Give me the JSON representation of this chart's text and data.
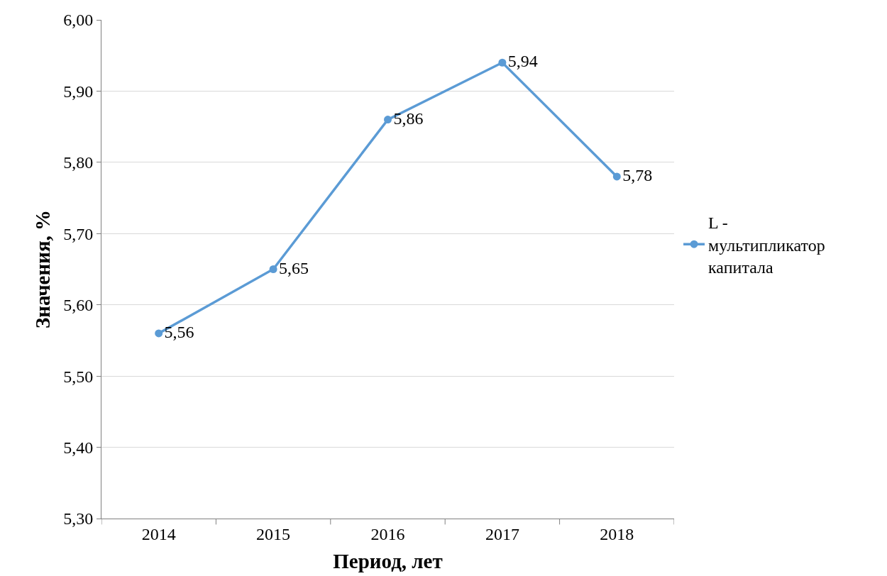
{
  "chart_data": {
    "type": "line",
    "xlabel": "Период, лет",
    "ylabel": "Значения, %",
    "categories": [
      "2014",
      "2015",
      "2016",
      "2017",
      "2018"
    ],
    "series": [
      {
        "name": "L - мультипликатор капитала",
        "color": "#5b9bd5",
        "values": [
          5.56,
          5.65,
          5.86,
          5.94,
          5.78
        ],
        "value_labels": [
          "5,56",
          "5,65",
          "5,86",
          "5,94",
          "5,78"
        ]
      }
    ],
    "ylim": [
      5.3,
      6.0
    ],
    "yticks": [
      {
        "value": 5.3,
        "label": "5,30"
      },
      {
        "value": 5.4,
        "label": "5,40"
      },
      {
        "value": 5.5,
        "label": "5,50"
      },
      {
        "value": 5.6,
        "label": "5,60"
      },
      {
        "value": 5.7,
        "label": "5,70"
      },
      {
        "value": 5.8,
        "label": "5,80"
      },
      {
        "value": 5.9,
        "label": "5,90"
      },
      {
        "value": 6.0,
        "label": "6,00"
      }
    ],
    "grid": "y",
    "legend": "right",
    "marker": "circle",
    "line_style": "solid"
  }
}
